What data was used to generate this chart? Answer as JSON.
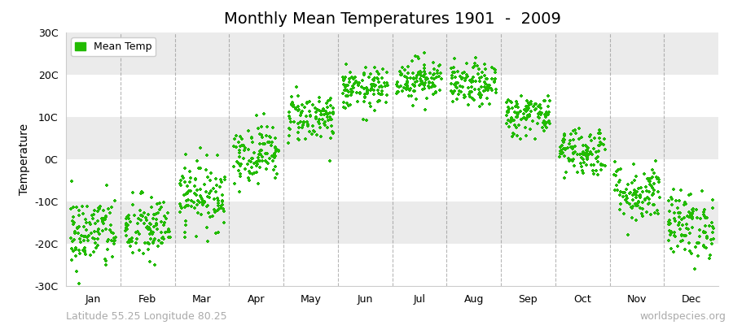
{
  "title": "Monthly Mean Temperatures 1901  -  2009",
  "ylabel": "Temperature",
  "ylim": [
    -30,
    30
  ],
  "yticks": [
    -30,
    -20,
    -10,
    0,
    10,
    20,
    30
  ],
  "ytick_labels": [
    "-30C",
    "-20C",
    "-10C",
    "0C",
    "10C",
    "20C",
    "30C"
  ],
  "months": [
    "Jan",
    "Feb",
    "Mar",
    "Apr",
    "May",
    "Jun",
    "Jul",
    "Aug",
    "Sep",
    "Oct",
    "Nov",
    "Dec"
  ],
  "month_means": [
    -17.5,
    -16.5,
    -8.5,
    1.5,
    10.0,
    16.5,
    19.0,
    17.5,
    10.5,
    2.0,
    -8.0,
    -15.5
  ],
  "month_stds": [
    4.5,
    4.0,
    4.0,
    3.5,
    3.0,
    2.5,
    2.5,
    2.5,
    2.5,
    3.0,
    3.5,
    4.0
  ],
  "n_years": 109,
  "dot_color": "#22bb00",
  "dot_size": 12,
  "background_color": "#ffffff",
  "band_colors": [
    "#ffffff",
    "#ebebeb",
    "#ffffff",
    "#ebebeb",
    "#ffffff",
    "#ebebeb"
  ],
  "title_fontsize": 14,
  "axis_fontsize": 10,
  "tick_fontsize": 9,
  "legend_label": "Mean Temp",
  "subtitle_left": "Latitude 55.25 Longitude 80.25",
  "subtitle_right": "worldspecies.org",
  "subtitle_fontsize": 9,
  "grid_color": "#888888",
  "seed": 42
}
